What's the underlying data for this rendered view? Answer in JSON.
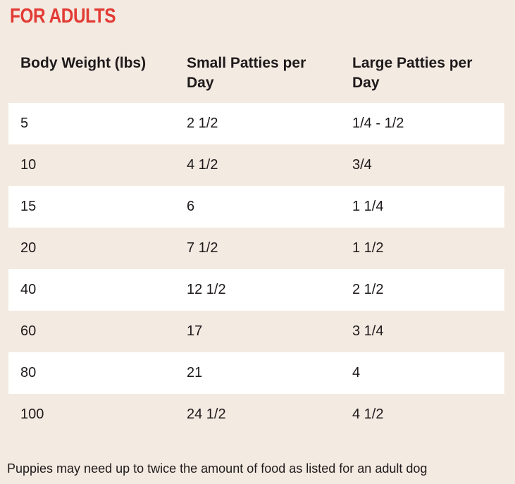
{
  "colors": {
    "background": "#f3eae1",
    "row_stripe": "#ffffff",
    "title_red": "#e23b34",
    "text": "#1e1a1b"
  },
  "chart_data": {
    "type": "table",
    "title": "FOR ADULTS",
    "columns": [
      "Body Weight (lbs)",
      "Small Patties per Day",
      "Large Patties per Day"
    ],
    "rows": [
      [
        "5",
        "2 1/2",
        "1/4 - 1/2"
      ],
      [
        "10",
        "4 1/2",
        "3/4"
      ],
      [
        "15",
        "6",
        "1 1/4"
      ],
      [
        "20",
        "7 1/2",
        "1 1/2"
      ],
      [
        "40",
        "12 1/2",
        "2 1/2"
      ],
      [
        "60",
        "17",
        "3 1/4"
      ],
      [
        "80",
        "21",
        "4"
      ],
      [
        "100",
        "24 1/2",
        "4 1/2"
      ]
    ],
    "layout": {
      "row_striping": "alternating white on beige, starting white",
      "grid_lines": "none",
      "legend": "none"
    },
    "footnote": "Puppies may need up to twice the amount of food as listed for an adult dog"
  }
}
